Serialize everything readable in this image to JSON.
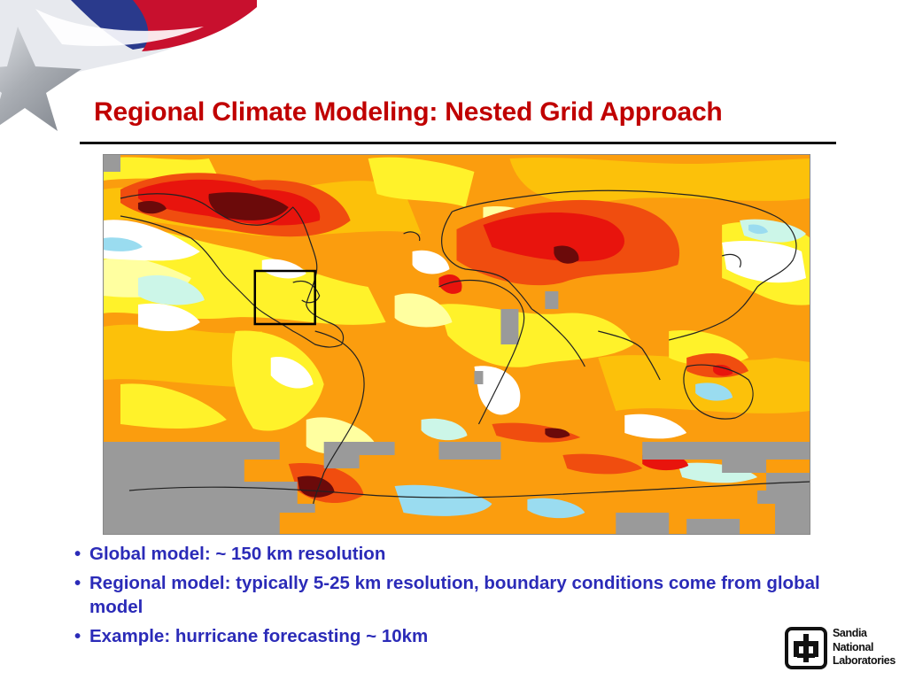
{
  "slide": {
    "title": "Regional Climate Modeling: Nested Grid Approach",
    "bullets": [
      {
        "marker": "•",
        "text": "Global model:  ~ 150 km resolution"
      },
      {
        "marker": "•",
        "text": "Regional model:   typically 5-25 km resolution, boundary conditions come from global model"
      },
      {
        "marker": "•",
        "text": "Example:  hurricane forecasting ~ 10km"
      }
    ]
  },
  "figure": {
    "type": "global temperature anomaly map",
    "highlight": "nested domain box around Gulf of Mexico / Caribbean",
    "colors": {
      "darkred": "#6b0a0a",
      "red": "#e8140d",
      "redorange": "#f04d0f",
      "orange": "#fb9d0e",
      "lightorange": "#fcc10a",
      "yellow": "#fff22a",
      "paleyellow": "#ffffa0",
      "white": "#ffffff",
      "mint": "#ccf6e8",
      "lightblue": "#9adcf0",
      "gray": "#9a9a9a"
    }
  },
  "logo": {
    "lines": [
      "Sandia",
      "National",
      "Laboratories"
    ],
    "icon": "thunderbird-icon"
  },
  "decoration": {
    "icon": "star-swoosh-icon",
    "colors": {
      "red": "#c8102e",
      "blue": "#2a3a8c",
      "silver": "#a9adb3"
    }
  }
}
